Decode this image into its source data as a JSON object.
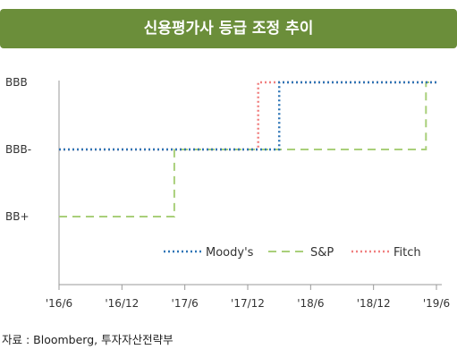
{
  "title": "신용평가사 등급 조정 추이",
  "source": "자료 : Bloomberg, 투자자산전략부",
  "chart_data": {
    "type": "line",
    "title": "신용평가사 등급 조정 추이",
    "x": [
      "'16/6",
      "'16/12",
      "'17/6",
      "'17/12",
      "'18/6",
      "'18/12",
      "'19/6"
    ],
    "y_categories": [
      "BB+",
      "BBB-",
      "BBB"
    ],
    "grid": false,
    "legend_position": "inside-bottom-right",
    "series": [
      {
        "name": "Moody's",
        "color": "#2e75b6",
        "style": "dotted",
        "points": [
          [
            "2016-06",
            "BBB-"
          ],
          [
            "2018-03",
            "BBB-"
          ],
          [
            "2018-03",
            "BBB"
          ],
          [
            "2019-06",
            "BBB"
          ]
        ]
      },
      {
        "name": "S&P",
        "color": "#a9cf7a",
        "style": "dashed",
        "points": [
          [
            "2016-06",
            "BB+"
          ],
          [
            "2017-05",
            "BB+"
          ],
          [
            "2017-05",
            "BBB-"
          ],
          [
            "2019-05",
            "BBB-"
          ],
          [
            "2019-05",
            "BBB"
          ],
          [
            "2019-06",
            "BBB"
          ]
        ]
      },
      {
        "name": "Fitch",
        "color": "#f08080",
        "style": "dotted",
        "points": [
          [
            "2016-06",
            "BBB-"
          ],
          [
            "2018-01",
            "BBB-"
          ],
          [
            "2018-01",
            "BBB"
          ],
          [
            "2019-06",
            "BBB"
          ]
        ]
      }
    ]
  }
}
